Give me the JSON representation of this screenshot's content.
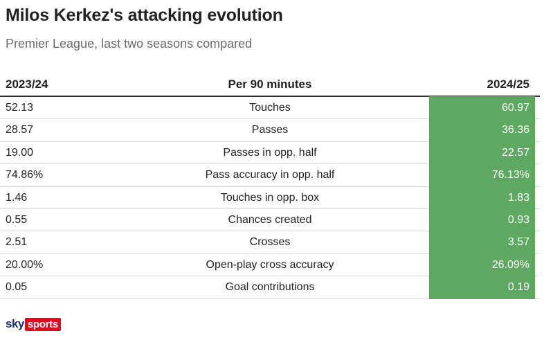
{
  "header": {
    "title": "Milos Kerkez's attacking evolution",
    "subtitle": "Premier League, last two seasons compared"
  },
  "chart_data": {
    "type": "table",
    "columns": [
      "2023/24",
      "Per 90 minutes",
      "2024/25"
    ],
    "rows": [
      {
        "label": "Touches",
        "2023/24": "52.13",
        "2024/25": "60.97"
      },
      {
        "label": "Passes",
        "2023/24": "28.57",
        "2024/25": "36.36"
      },
      {
        "label": "Passes in opp. half",
        "2023/24": "19.00",
        "2024/25": "22.57"
      },
      {
        "label": "Pass accuracy in opp. half",
        "2023/24": "74.86%",
        "2024/25": "76.13%"
      },
      {
        "label": "Touches in opp. box",
        "2023/24": "1.46",
        "2024/25": "1.83"
      },
      {
        "label": "Chances created",
        "2023/24": "0.55",
        "2024/25": "0.93"
      },
      {
        "label": "Crosses",
        "2023/24": "2.51",
        "2024/25": "3.57"
      },
      {
        "label": "Open-play cross accuracy",
        "2023/24": "20.00%",
        "2024/25": "26.09%"
      },
      {
        "label": "Goal contributions",
        "2023/24": "0.05",
        "2024/25": "0.19"
      }
    ],
    "highlight_color": "#5fa861"
  },
  "branding": {
    "logo_word_1": "sky",
    "logo_word_2": "sports"
  }
}
